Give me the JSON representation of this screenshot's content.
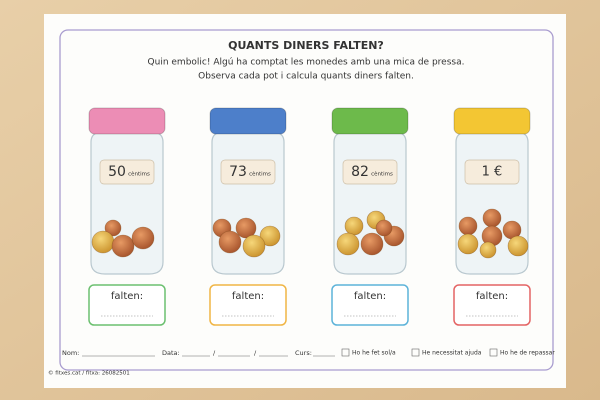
{
  "header": {
    "title": "QUANTS DINERS FALTEN?",
    "instructions": [
      "Quin embolic! Algú ha comptat les monedes amb una mica de pressa.",
      "Observa cada pot i calcula quants diners falten."
    ]
  },
  "jars": [
    {
      "amount": "50",
      "unit": "cèntims",
      "answer_label": "falten:"
    },
    {
      "amount": "73",
      "unit": "cèntims",
      "answer_label": "falten:"
    },
    {
      "amount": "82",
      "unit": "cèntims",
      "answer_label": "falten:"
    },
    {
      "amount": "1 €",
      "answer_label": "falten:"
    }
  ],
  "footer": {
    "name": "Nom:",
    "date": "Data:",
    "course": "Curs:",
    "checks": [
      "Ho he fet sol/a",
      "He necessitat ajuda",
      "Ho he de repassar"
    ]
  },
  "credit": "© fitxes.cat / fitxa: 26082501"
}
